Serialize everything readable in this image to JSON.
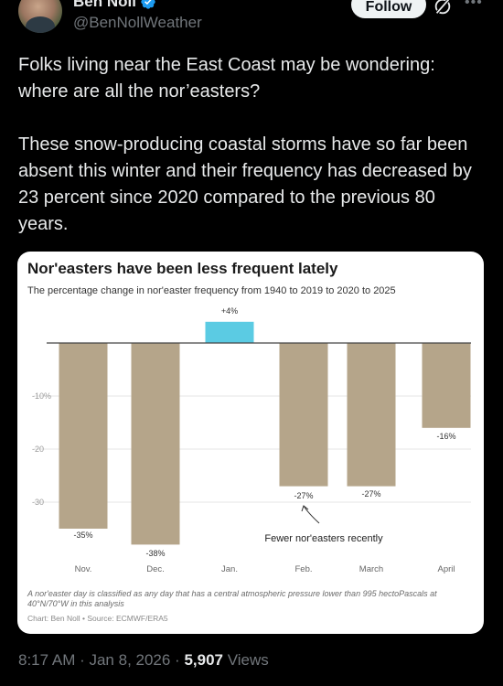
{
  "author": {
    "display_name": "Ben Noll",
    "handle": "@BenNollWeather",
    "follow_label": "Follow",
    "more_label": "•••"
  },
  "tweet": {
    "text": "Folks living near the East Coast may be wondering: where are all the nor’easters?\n\nThese snow-producing coastal storms have so far been absent this winter and their frequency has decreased by 23 percent since 2020 compared to the previous 80 years."
  },
  "chart_data": {
    "type": "bar",
    "title": "Nor'easters have been less frequent lately",
    "subtitle": "The percentage change in nor'easter frequency from 1940 to 2019 to 2020 to 2025",
    "categories": [
      "Nov.",
      "Dec.",
      "Jan.",
      "Feb.",
      "March",
      "April"
    ],
    "values": [
      -35,
      -38,
      4,
      -27,
      -27,
      -16
    ],
    "data_labels": [
      "-35%",
      "-38%",
      "+4%",
      "-27%",
      "-27%",
      "-16%"
    ],
    "ytick_values": [
      -10,
      -20,
      -30
    ],
    "ytick_labels": [
      "-10%",
      "-20",
      "-30"
    ],
    "ylim": [
      -40,
      6
    ],
    "grid": true,
    "annotation": "Fewer nor'easters recently",
    "colors": {
      "negative": "#b5a58a",
      "positive": "#5bcbe3",
      "axis": "#444444",
      "grid": "#e6e6e6"
    },
    "footnote": "A nor'easter day is classified as any day that has a central atmospheric pressure lower than 995 hectoPascals at 40°N/70°W in this analysis",
    "credit": "Chart: Ben Noll • Source: ECMWF/ERA5"
  },
  "footer": {
    "time": "8:17 AM · Jan 8, 2026 · ",
    "views_count": "5,907",
    "views_label": " Views"
  }
}
